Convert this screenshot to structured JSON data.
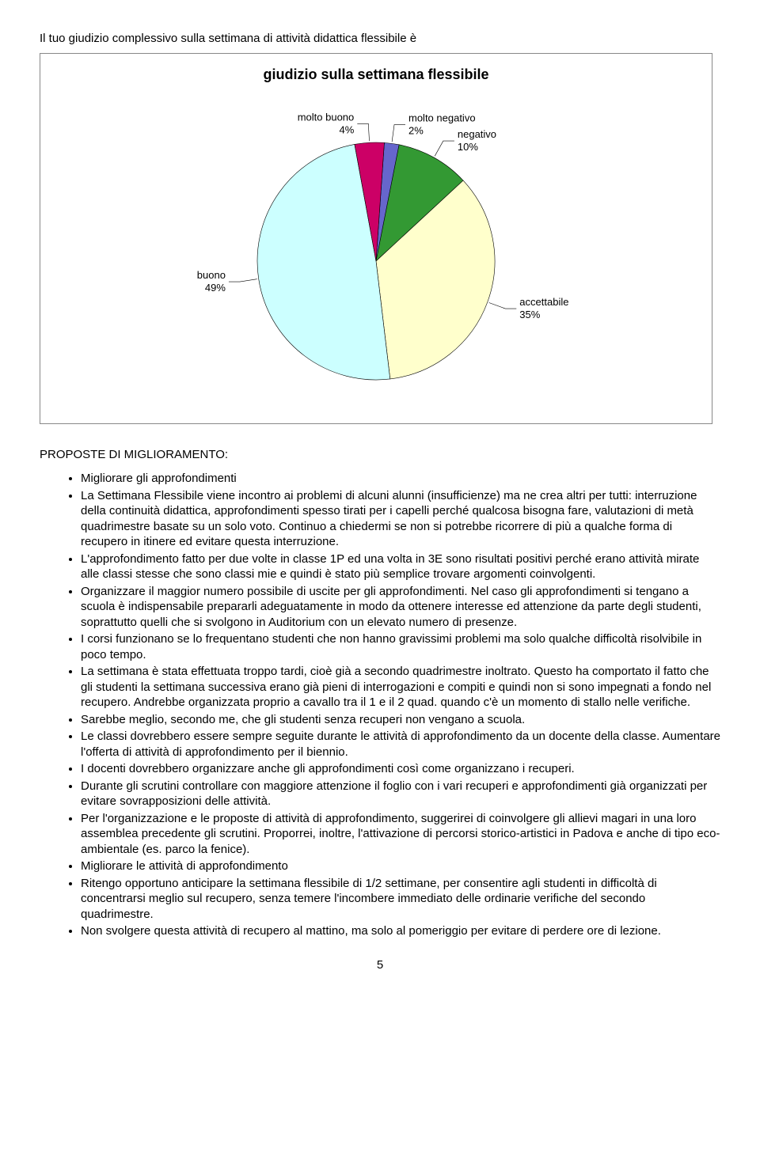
{
  "question": "Il tuo giudizio complessivo sulla settimana di attività didattica flessibile è",
  "chart": {
    "type": "pie",
    "title": "giudizio sulla settimana flessibile",
    "title_fontsize": 18,
    "background_color": "#ffffff",
    "outline_color": "#000000",
    "outline_width": 0.6,
    "label_fontsize": 13,
    "slices": [
      {
        "name": "molto negativo",
        "value": 2,
        "label_line1": "molto negativo",
        "label_line2": "2%",
        "color": "#6666cc"
      },
      {
        "name": "negativo",
        "value": 10,
        "label_line1": "negativo",
        "label_line2": "10%",
        "color": "#339933"
      },
      {
        "name": "accettabile",
        "value": 35,
        "label_line1": "accettabile",
        "label_line2": "35%",
        "color": "#ffffcc"
      },
      {
        "name": "buono",
        "value": 49,
        "label_line1": "buono",
        "label_line2": "49%",
        "color": "#ccffff"
      },
      {
        "name": "molto buono",
        "value": 4,
        "label_line1": "molto buono",
        "label_line2": "4%",
        "color": "#cc0066"
      }
    ],
    "start_angle_deg": -86
  },
  "section_heading": "PROPOSTE DI MIGLIORAMENTO:",
  "proposals": [
    "Migliorare gli approfondimenti",
    "La Settimana Flessibile viene incontro ai problemi di alcuni alunni (insufficienze) ma ne crea altri per tutti: interruzione della continuità didattica, approfondimenti spesso tirati per i capelli perché qualcosa bisogna fare, valutazioni di metà quadrimestre basate su un solo voto. Continuo a chiedermi se non si potrebbe ricorrere di più a qualche forma di recupero in itinere ed evitare questa interruzione.",
    "L'approfondimento fatto per due volte in classe 1P ed una volta in 3E sono risultati positivi perché erano attività mirate alle classi stesse che sono classi mie e quindi è stato più semplice trovare argomenti coinvolgenti.",
    "Organizzare il maggior numero possibile di uscite per gli approfondimenti. Nel caso gli approfondimenti si tengano a scuola è indispensabile prepararli adeguatamente in modo da ottenere interesse ed attenzione da parte degli studenti, soprattutto quelli che si svolgono in Auditorium con un elevato numero di presenze.",
    "I corsi funzionano se lo frequentano studenti che non hanno gravissimi problemi ma solo qualche difficoltà risolvibile in poco tempo.",
    "La settimana è stata effettuata troppo tardi, cioè già a secondo quadrimestre inoltrato. Questo ha comportato il fatto che gli studenti la settimana successiva erano già pieni di interrogazioni e compiti e quindi non si sono impegnati a fondo nel recupero. Andrebbe organizzata proprio a cavallo tra il 1 e il 2 quad. quando c'è un momento di stallo nelle verifiche.",
    "Sarebbe meglio, secondo me, che gli studenti senza recuperi non vengano a scuola.",
    "Le classi dovrebbero essere sempre seguite durante le attività di approfondimento da un docente della classe. Aumentare l'offerta di attività di approfondimento per il biennio.",
    "I docenti dovrebbero organizzare anche gli approfondimenti così come organizzano i recuperi.",
    "Durante gli scrutini controllare con maggiore attenzione il foglio con i vari recuperi e approfondimenti già organizzati per evitare sovrapposizioni delle attività.",
    "Per l'organizzazione e le proposte di attività di approfondimento, suggerirei di coinvolgere gli allievi magari in una loro assemblea precedente gli scrutini.  Proporrei, inoltre, l'attivazione di percorsi storico-artistici in Padova e anche di tipo eco-ambientale (es. parco la fenice).",
    "Migliorare le attività di approfondimento",
    "Ritengo opportuno anticipare la settimana flessibile di 1/2 settimane, per consentire agli studenti in difficoltà di concentrarsi meglio sul recupero, senza temere l'incombere immediato delle ordinarie verifiche del secondo quadrimestre.",
    "Non svolgere questa attività di recupero al mattino, ma solo al pomeriggio per evitare di perdere ore di lezione."
  ],
  "page_number": "5"
}
